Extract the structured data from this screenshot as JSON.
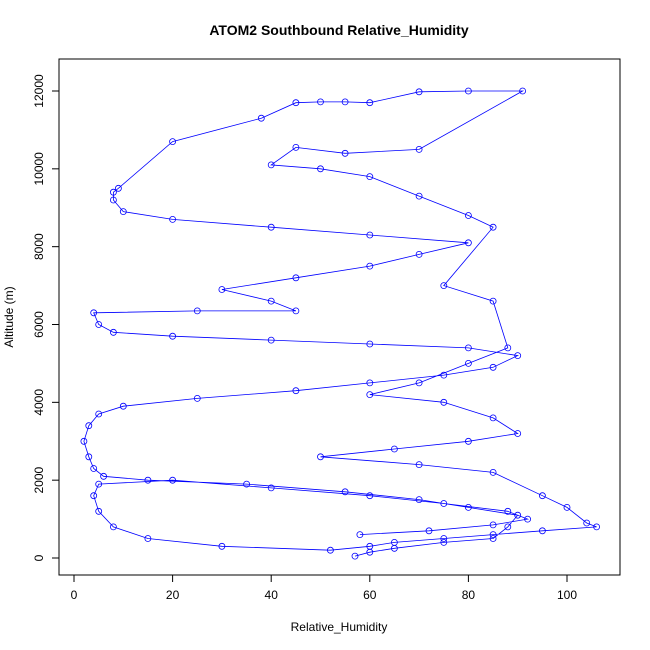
{
  "chart_data": {
    "type": "scatter",
    "title": "ATOM2 Southbound Relative_Humidity",
    "xlabel": "Relative_Humidity",
    "ylabel": "Altitude (m)",
    "xlim": [
      0,
      110
    ],
    "ylim": [
      0,
      12600
    ],
    "xticks": [
      0,
      20,
      40,
      60,
      80,
      100
    ],
    "yticks": [
      0,
      2000,
      4000,
      6000,
      8000,
      10000,
      12000
    ],
    "marker": "open-circle",
    "connected_lines": true,
    "color": "#0000ff",
    "series": [
      {
        "points": [
          [
            57,
            50
          ],
          [
            60,
            150
          ],
          [
            65,
            250
          ],
          [
            75,
            400
          ],
          [
            85,
            500
          ],
          [
            88,
            800
          ],
          [
            90,
            1100
          ],
          [
            80,
            1300
          ],
          [
            70,
            1500
          ],
          [
            55,
            1700
          ],
          [
            35,
            1900
          ],
          [
            15,
            2000
          ],
          [
            6,
            2100
          ],
          [
            4,
            2300
          ],
          [
            3,
            2600
          ],
          [
            2,
            3000
          ],
          [
            3,
            3400
          ],
          [
            5,
            3700
          ],
          [
            10,
            3900
          ],
          [
            25,
            4100
          ],
          [
            45,
            4300
          ],
          [
            60,
            4500
          ],
          [
            75,
            4700
          ],
          [
            85,
            4900
          ],
          [
            90,
            5200
          ],
          [
            80,
            5400
          ],
          [
            60,
            5500
          ],
          [
            40,
            5600
          ],
          [
            20,
            5700
          ],
          [
            8,
            5800
          ],
          [
            5,
            6000
          ],
          [
            4,
            6300
          ],
          [
            25,
            6350
          ],
          [
            45,
            6350
          ],
          [
            40,
            6600
          ],
          [
            30,
            6900
          ],
          [
            45,
            7200
          ],
          [
            60,
            7500
          ],
          [
            70,
            7800
          ],
          [
            80,
            8100
          ],
          [
            60,
            8300
          ],
          [
            40,
            8500
          ],
          [
            20,
            8700
          ],
          [
            10,
            8900
          ],
          [
            8,
            9200
          ],
          [
            8,
            9400
          ],
          [
            9,
            9500
          ],
          [
            20,
            10700
          ],
          [
            38,
            11300
          ],
          [
            45,
            11700
          ],
          [
            50,
            11720
          ],
          [
            55,
            11720
          ],
          [
            60,
            11700
          ],
          [
            70,
            11980
          ],
          [
            80,
            12000
          ],
          [
            91,
            12000
          ],
          [
            70,
            10500
          ],
          [
            55,
            10400
          ],
          [
            45,
            10550
          ],
          [
            40,
            10100
          ],
          [
            50,
            10000
          ],
          [
            60,
            9800
          ],
          [
            70,
            9300
          ],
          [
            80,
            8800
          ],
          [
            85,
            8500
          ],
          [
            75,
            7000
          ],
          [
            85,
            6600
          ],
          [
            88,
            5400
          ],
          [
            80,
            5000
          ],
          [
            70,
            4500
          ],
          [
            60,
            4200
          ],
          [
            75,
            4000
          ],
          [
            85,
            3600
          ],
          [
            90,
            3200
          ],
          [
            80,
            3000
          ],
          [
            65,
            2800
          ],
          [
            50,
            2600
          ],
          [
            70,
            2400
          ],
          [
            85,
            2200
          ],
          [
            95,
            1600
          ],
          [
            100,
            1300
          ],
          [
            104,
            900
          ],
          [
            106,
            800
          ],
          [
            95,
            700
          ],
          [
            85,
            600
          ],
          [
            75,
            500
          ],
          [
            65,
            400
          ],
          [
            60,
            300
          ],
          [
            52,
            200
          ],
          [
            30,
            300
          ],
          [
            15,
            500
          ],
          [
            8,
            800
          ],
          [
            5,
            1200
          ],
          [
            4,
            1600
          ],
          [
            5,
            1900
          ],
          [
            20,
            2000
          ],
          [
            40,
            1800
          ],
          [
            60,
            1600
          ],
          [
            75,
            1400
          ],
          [
            88,
            1200
          ],
          [
            92,
            1000
          ],
          [
            85,
            850
          ],
          [
            72,
            700
          ],
          [
            58,
            600
          ]
        ]
      }
    ]
  }
}
